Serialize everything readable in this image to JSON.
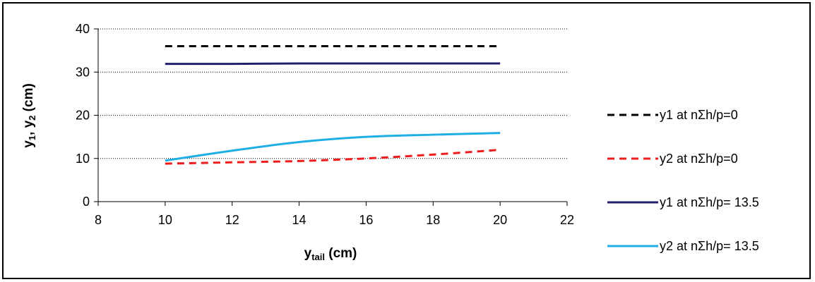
{
  "chart_data": {
    "type": "line",
    "xlabel": "y tail (cm)",
    "xlabel_main": "y",
    "xlabel_sub": "tail",
    "xlabel_unit": " (cm)",
    "ylabel": "y1, y2 (cm)",
    "ylabel_parts": {
      "v1": "y",
      "s1": "1",
      "sep": ", ",
      "v2": "y",
      "s2": "2",
      "unit": " (cm)"
    },
    "xlim": [
      8,
      22
    ],
    "ylim": [
      0,
      40
    ],
    "xticks": [
      8,
      10,
      12,
      14,
      16,
      18,
      20,
      22
    ],
    "yticks": [
      0,
      10,
      20,
      30,
      40
    ],
    "grid": "horizontal dotted",
    "legend_position": "right",
    "series": [
      {
        "name": "y1 at nΣh/p=0",
        "color": "#000000",
        "dash": "dashed",
        "x": [
          10,
          12,
          14,
          16,
          18,
          20
        ],
        "y": [
          36,
          36,
          36,
          36,
          36,
          36
        ]
      },
      {
        "name": "y2 at nΣh/p=0",
        "color": "#ee1c1c",
        "dash": "dashed",
        "x": [
          10,
          12,
          14,
          16,
          18,
          20
        ],
        "y": [
          8.8,
          9.1,
          9.4,
          10.0,
          10.9,
          12.0
        ]
      },
      {
        "name": "y1 at  nΣh/p= 13.5",
        "color": "#1f1f6b",
        "dash": "solid",
        "x": [
          10,
          12,
          14,
          16,
          18,
          20
        ],
        "y": [
          31.9,
          31.9,
          32.0,
          32.0,
          32.0,
          32.0
        ]
      },
      {
        "name": "y2 at nΣh/p= 13.5",
        "color": "#1eaee6",
        "dash": "solid",
        "x": [
          10,
          12,
          14,
          16,
          18,
          20
        ],
        "y": [
          9.5,
          11.8,
          13.8,
          15.0,
          15.5,
          15.9
        ]
      }
    ]
  }
}
